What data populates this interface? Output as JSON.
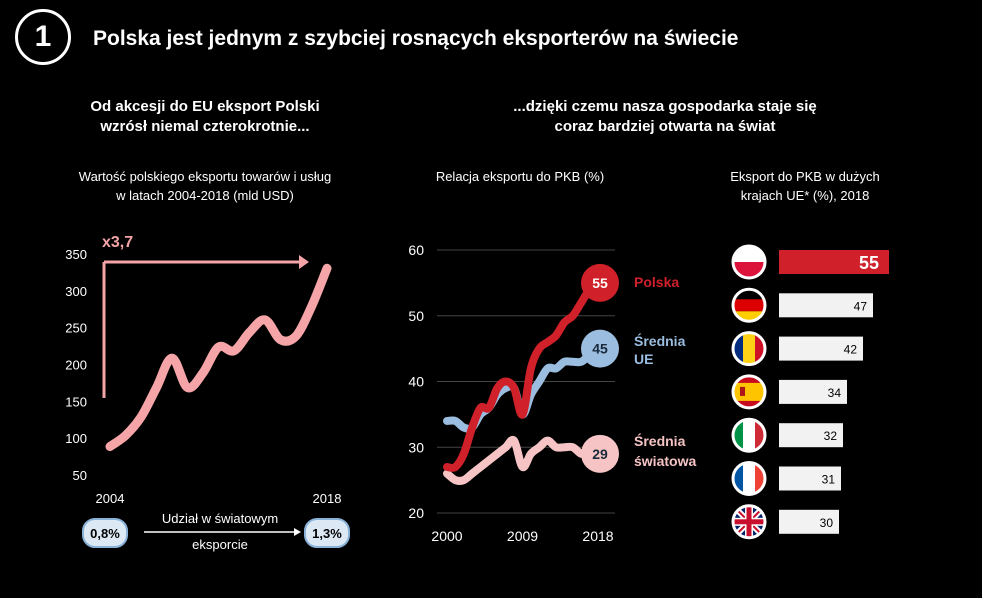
{
  "header": {
    "badge": "1",
    "title": "Polska jest jednym z szybciej rosnących eksporterów na świecie"
  },
  "left_section": {
    "title_line1": "Od akcesji do EU eksport Polski",
    "title_line2": "wzrósł niemal czterokrotnie...",
    "subtitle_line1": "Wartość polskiego eksportu towarów i usług",
    "subtitle_line2": "w latach 2004-2018 (mld USD)",
    "share_start": "0,8%",
    "share_end": "1,3%",
    "share_label_line1": "Udział w światowym",
    "share_label_line2": "eksporcie"
  },
  "right_section": {
    "title_line1": "...dzięki czemu nasza gospodarka staje się",
    "title_line2": "coraz bardziej otwarta na świat",
    "line_subtitle": "Relacja eksportu do PKB (%)",
    "bar_subtitle_line1": "Eksport do PKB w dużych",
    "bar_subtitle_line2": "krajach UE* (%), 2018"
  },
  "chart_data": [
    {
      "type": "line",
      "title": "Wartość polskiego eksportu towarów i usług w latach 2004-2018 (mld USD)",
      "x_tick_labels": [
        "2004",
        "2018"
      ],
      "y_ticks": [
        50,
        100,
        150,
        200,
        250,
        300,
        350
      ],
      "y_tick_labels": [
        "50",
        "100",
        "150",
        "200",
        "250",
        "300",
        "350"
      ],
      "ylim": [
        50,
        350
      ],
      "x": [
        2004,
        2005,
        2006,
        2007,
        2008,
        2009,
        2010,
        2011,
        2012,
        2013,
        2014,
        2015,
        2016,
        2017,
        2018
      ],
      "series": [
        {
          "values": [
            90,
            105,
            130,
            170,
            210,
            170,
            190,
            225,
            220,
            245,
            262,
            235,
            240,
            280,
            332
          ],
          "color": "#f5a5a8"
        }
      ],
      "annotation": "x3,7",
      "annotation_color": "#f5a5a8"
    },
    {
      "type": "line",
      "title": "Relacja eksportu do PKB (%)",
      "x_tick_labels": [
        "2000",
        "2009",
        "2018"
      ],
      "xlim": [
        2000,
        2018
      ],
      "y_ticks": [
        20,
        30,
        40,
        50,
        60
      ],
      "y_tick_labels": [
        "20",
        "30",
        "40",
        "50",
        "60"
      ],
      "ylim": [
        20,
        60
      ],
      "x": [
        2000,
        2001,
        2002,
        2003,
        2004,
        2005,
        2006,
        2007,
        2008,
        2009,
        2010,
        2011,
        2012,
        2013,
        2014,
        2015,
        2016,
        2017,
        2018
      ],
      "series": [
        {
          "name": "Polska",
          "values": [
            27,
            27,
            29,
            33,
            36,
            36,
            39,
            40,
            39,
            35,
            42,
            45,
            46,
            47,
            49,
            50,
            52,
            54,
            55
          ],
          "color": "#d0202a",
          "end_label": "55"
        },
        {
          "name": "Średnia UE",
          "values": [
            34,
            34,
            33,
            33,
            35,
            36,
            38,
            39,
            39,
            35,
            38,
            40,
            42,
            42,
            43,
            43,
            43,
            44,
            45
          ],
          "color": "#9bbde0",
          "end_label": "45"
        },
        {
          "name": "Średnia światowa",
          "values": [
            26,
            25,
            25,
            26,
            27,
            28,
            29,
            30,
            31,
            27,
            29,
            30,
            31,
            30,
            30,
            30,
            29,
            29,
            29
          ],
          "color": "#f6c4c4",
          "end_label": "29"
        }
      ],
      "legend_labels": {
        "polska": "Polska",
        "ue_line1": "Średnia",
        "ue_line2": "UE",
        "world_line1": "Średnia",
        "world_line2": "światowa"
      }
    },
    {
      "type": "bar",
      "orientation": "horizontal",
      "title": "Eksport do PKB w dużych krajach UE* (%), 2018",
      "categories": [
        "Polska",
        "Niemcy",
        "Rumunia",
        "Hiszpania",
        "Włochy",
        "Francja",
        "Wielka Brytania"
      ],
      "category_icons": [
        "flag-poland-icon",
        "flag-germany-icon",
        "flag-romania-icon",
        "flag-spain-icon",
        "flag-italy-icon",
        "flag-france-icon",
        "flag-uk-icon"
      ],
      "values": [
        55,
        47,
        42,
        34,
        32,
        31,
        30
      ],
      "value_labels": [
        "55",
        "47",
        "42",
        "34",
        "32",
        "31",
        "30"
      ],
      "highlight_color": "#d0202a",
      "bar_color": "#f2f2f2"
    }
  ]
}
